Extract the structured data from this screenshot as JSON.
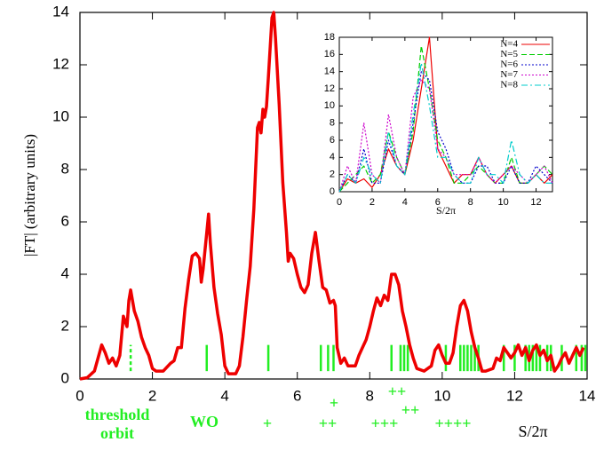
{
  "chart_data": [
    {
      "type": "line",
      "x_label": "S/2π",
      "y_label": "|FT| (arbitrary units)",
      "xlim": [
        0,
        14
      ],
      "xticks": [
        0,
        2,
        4,
        6,
        8,
        10,
        12,
        14
      ],
      "ylim": [
        0,
        14
      ],
      "yticks": [
        0,
        2,
        4,
        6,
        8,
        10,
        12,
        14
      ],
      "x": [
        0,
        0.2,
        0.4,
        0.5,
        0.6,
        0.7,
        0.8,
        0.9,
        1.0,
        1.1,
        1.2,
        1.3,
        1.35,
        1.4,
        1.5,
        1.6,
        1.7,
        1.8,
        1.9,
        2.0,
        2.1,
        2.3,
        2.5,
        2.6,
        2.7,
        2.8,
        2.9,
        3.0,
        3.1,
        3.2,
        3.3,
        3.35,
        3.4,
        3.5,
        3.55,
        3.6,
        3.7,
        3.8,
        3.9,
        4.0,
        4.1,
        4.3,
        4.4,
        4.5,
        4.6,
        4.7,
        4.8,
        4.9,
        4.95,
        5.0,
        5.05,
        5.1,
        5.15,
        5.2,
        5.3,
        5.35,
        5.4,
        5.5,
        5.6,
        5.7,
        5.75,
        5.8,
        5.9,
        6.0,
        6.1,
        6.2,
        6.3,
        6.4,
        6.5,
        6.6,
        6.7,
        6.8,
        6.9,
        7.0,
        7.05,
        7.1,
        7.2,
        7.3,
        7.4,
        7.6,
        7.7,
        7.8,
        7.9,
        8.0,
        8.1,
        8.2,
        8.3,
        8.4,
        8.5,
        8.6,
        8.7,
        8.8,
        8.9,
        9.0,
        9.1,
        9.2,
        9.3,
        9.5,
        9.7,
        9.8,
        9.9,
        10.0,
        10.1,
        10.2,
        10.3,
        10.4,
        10.5,
        10.6,
        10.7,
        10.8,
        10.9,
        11.0,
        11.1,
        11.2,
        11.4,
        11.5,
        11.6,
        11.7,
        11.8,
        11.9,
        12.0,
        12.1,
        12.2,
        12.3,
        12.4,
        12.5,
        12.6,
        12.7,
        12.8,
        12.9,
        13.0,
        13.1,
        13.2,
        13.3,
        13.4,
        13.5,
        13.6,
        13.7,
        13.8,
        13.9
      ],
      "series": [
        {
          "color": "#ee0000",
          "values": [
            0,
            0.05,
            0.3,
            0.8,
            1.3,
            1.0,
            0.6,
            0.8,
            0.5,
            0.9,
            2.4,
            2.0,
            3.0,
            3.4,
            2.6,
            2.2,
            1.6,
            1.2,
            0.9,
            0.4,
            0.3,
            0.3,
            0.6,
            0.7,
            1.2,
            1.2,
            2.7,
            3.8,
            4.7,
            4.8,
            4.6,
            3.7,
            4.2,
            5.6,
            6.3,
            5.2,
            3.5,
            2.5,
            1.7,
            0.5,
            0.2,
            0.2,
            0.5,
            1.6,
            3.0,
            4.3,
            6.5,
            9.6,
            9.8,
            9.4,
            10.3,
            10.0,
            10.4,
            11.5,
            13.8,
            14.0,
            13.0,
            10.5,
            7.5,
            5.6,
            4.5,
            4.8,
            4.6,
            4.0,
            3.5,
            3.3,
            3.6,
            4.8,
            5.6,
            4.5,
            3.5,
            3.4,
            2.9,
            3.0,
            2.8,
            1.2,
            0.6,
            0.8,
            0.5,
            0.5,
            0.9,
            1.2,
            1.5,
            2.0,
            2.6,
            3.1,
            2.8,
            3.2,
            3.0,
            4.0,
            4.0,
            3.6,
            2.6,
            2.0,
            1.3,
            0.8,
            0.4,
            0.3,
            0.5,
            1.1,
            1.3,
            0.9,
            0.6,
            0.6,
            1.0,
            2.0,
            2.8,
            3.0,
            2.6,
            1.8,
            1.2,
            0.8,
            0.3,
            0.3,
            0.4,
            0.8,
            0.7,
            1.2,
            1.0,
            0.8,
            1.0,
            1.3,
            0.9,
            1.2,
            0.7,
            1.1,
            1.3,
            0.9,
            1.1,
            0.7,
            0.9,
            0.3,
            0.5,
            0.8,
            1.0,
            0.6,
            0.9,
            1.2,
            0.9,
            1.2
          ]
        }
      ],
      "orbit_marks": [
        1.4,
        3.5,
        5.2,
        6.65,
        6.85,
        7.0,
        8.6,
        8.85,
        8.95,
        9.05,
        10.1,
        10.5,
        10.6,
        10.7,
        10.8,
        10.9,
        11.0,
        11.7,
        12.0,
        12.3,
        12.4,
        12.5,
        12.6,
        12.7,
        12.9,
        13.0,
        13.3,
        13.7,
        13.85,
        13.95
      ],
      "orbit_color": "#22ee22",
      "annotations": {
        "threshold_orbit": [
          "threshold",
          "orbit"
        ],
        "wo": "WO",
        "plus_labels": [
          "+",
          "+",
          "++",
          "++",
          "++",
          "+++",
          "++++"
        ]
      }
    },
    {
      "type": "line",
      "x_label": "S/2π",
      "xlim": [
        0,
        13
      ],
      "xticks": [
        0,
        2,
        4,
        6,
        8,
        10,
        12
      ],
      "ylim": [
        0,
        18
      ],
      "yticks": [
        0,
        2,
        4,
        6,
        8,
        10,
        12,
        14,
        16,
        18
      ],
      "x": [
        0,
        0.5,
        1,
        1.5,
        2,
        2.5,
        3,
        3.5,
        4,
        4.5,
        5,
        5.5,
        6,
        6.5,
        7,
        7.5,
        8,
        8.5,
        9,
        9.5,
        10,
        10.5,
        11,
        11.5,
        12,
        12.5,
        13
      ],
      "series": [
        {
          "name": "N=4",
          "color": "#ee0000",
          "style": "solid",
          "values": [
            0,
            1.5,
            1,
            1.5,
            0.5,
            2,
            5,
            3,
            2,
            6,
            12,
            18,
            5,
            3,
            1,
            2,
            2,
            4,
            2,
            1,
            2,
            3,
            1,
            1,
            2,
            1,
            2
          ]
        },
        {
          "name": "N=5",
          "color": "#00cc00",
          "style": "dashed",
          "values": [
            0,
            1,
            2,
            3,
            1,
            2,
            7,
            4,
            2,
            7,
            17,
            12,
            6,
            4,
            1,
            1,
            2,
            3,
            2,
            1,
            1,
            4,
            1,
            1,
            2,
            3,
            2
          ]
        },
        {
          "name": "N=6",
          "color": "#0000cc",
          "style": "dotted",
          "values": [
            0,
            2,
            1,
            5,
            1,
            1,
            6,
            3,
            2,
            8,
            14,
            13,
            7,
            5,
            2,
            1,
            1,
            3,
            3,
            1,
            1,
            3,
            1,
            1,
            3,
            2,
            1
          ]
        },
        {
          "name": "N=7",
          "color": "#cc00cc",
          "style": "dotted",
          "values": [
            0,
            3,
            1,
            8,
            2,
            1,
            9,
            4,
            2,
            11,
            13,
            12,
            5,
            4,
            2,
            2,
            2,
            4,
            2,
            1,
            2,
            3,
            2,
            1,
            2,
            3,
            1
          ]
        },
        {
          "name": "N=8",
          "color": "#00cccc",
          "style": "dashdot",
          "values": [
            0,
            2,
            1,
            4,
            2,
            1,
            7,
            3,
            2,
            9,
            15,
            10,
            4,
            4,
            2,
            1,
            1,
            4,
            2,
            2,
            1,
            6,
            2,
            1,
            2,
            1,
            1
          ]
        }
      ]
    }
  ]
}
